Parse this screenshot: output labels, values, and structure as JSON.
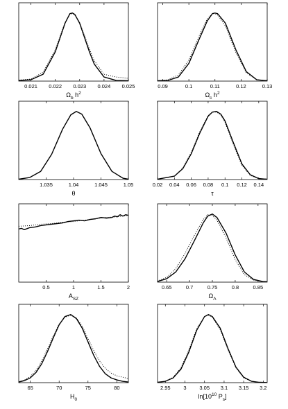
{
  "chart_data": [
    {
      "type": "line",
      "xlabel": {
        "parts": [
          [
            "Ω",
            "n"
          ],
          [
            "b",
            "sub"
          ],
          [
            " h",
            "n"
          ],
          [
            "2",
            "sup"
          ]
        ]
      },
      "xlim": [
        0.0205,
        0.025
      ],
      "ylim": [
        0,
        1.15
      ],
      "xticks": [
        0.021,
        0.022,
        0.023,
        0.024,
        0.025
      ],
      "xticklabels": [
        "0.021",
        "0.022",
        "0.023",
        "0.024",
        "0.025"
      ],
      "series": [
        {
          "style": "solid",
          "x": [
            0.0205,
            0.021,
            0.0215,
            0.022,
            0.0222,
            0.0224,
            0.0226,
            0.0227,
            0.0228,
            0.023,
            0.0232,
            0.0234,
            0.0236,
            0.024,
            0.0245,
            0.025
          ],
          "y": [
            0.01,
            0.02,
            0.1,
            0.43,
            0.64,
            0.85,
            0.99,
            1.0,
            0.98,
            0.85,
            0.64,
            0.43,
            0.25,
            0.06,
            0.01,
            0.005
          ]
        },
        {
          "style": "dotted",
          "x": [
            0.0205,
            0.021,
            0.0215,
            0.022,
            0.0222,
            0.0224,
            0.0226,
            0.0227,
            0.0228,
            0.023,
            0.0232,
            0.0234,
            0.0236,
            0.024,
            0.0245,
            0.025
          ],
          "y": [
            0.015,
            0.03,
            0.13,
            0.46,
            0.66,
            0.86,
            0.98,
            0.99,
            0.97,
            0.86,
            0.67,
            0.47,
            0.3,
            0.1,
            0.06,
            0.04
          ]
        }
      ]
    },
    {
      "type": "line",
      "xlabel": {
        "parts": [
          [
            "Ω",
            "n"
          ],
          [
            "c",
            "sub"
          ],
          [
            " h",
            "n"
          ],
          [
            "2",
            "sup"
          ]
        ]
      },
      "xlim": [
        0.088,
        0.13
      ],
      "ylim": [
        0,
        1.15
      ],
      "xticks": [
        0.09,
        0.1,
        0.11,
        0.12,
        0.13
      ],
      "xticklabels": [
        "0.09",
        "0.1",
        "0.11",
        "0.12",
        "0.13"
      ],
      "series": [
        {
          "style": "solid",
          "x": [
            0.088,
            0.092,
            0.096,
            0.1,
            0.104,
            0.107,
            0.109,
            0.11,
            0.111,
            0.114,
            0.118,
            0.122,
            0.126,
            0.13
          ],
          "y": [
            0.005,
            0.01,
            0.06,
            0.26,
            0.62,
            0.88,
            0.99,
            1.0,
            0.99,
            0.85,
            0.46,
            0.14,
            0.02,
            0.005
          ]
        },
        {
          "style": "dotted",
          "x": [
            0.088,
            0.092,
            0.096,
            0.1,
            0.104,
            0.107,
            0.109,
            0.11,
            0.111,
            0.114,
            0.118,
            0.122,
            0.126,
            0.13
          ],
          "y": [
            0.005,
            0.02,
            0.09,
            0.31,
            0.67,
            0.91,
            0.99,
            0.99,
            0.97,
            0.81,
            0.42,
            0.12,
            0.02,
            0.005
          ]
        }
      ]
    },
    {
      "type": "line",
      "xlabel": {
        "parts": [
          [
            "θ",
            "n"
          ]
        ]
      },
      "xlim": [
        1.03,
        1.05
      ],
      "ylim": [
        0,
        1.15
      ],
      "xticks": [
        1.035,
        1.04,
        1.045,
        1.05
      ],
      "xticklabels": [
        "1.035",
        "1.04",
        "1.045",
        "1.05"
      ],
      "series": [
        {
          "style": "solid",
          "x": [
            1.03,
            1.032,
            1.034,
            1.036,
            1.038,
            1.0395,
            1.0405,
            1.0415,
            1.043,
            1.045,
            1.047,
            1.049,
            1.05
          ],
          "y": [
            0.005,
            0.03,
            0.12,
            0.37,
            0.74,
            0.95,
            1.0,
            0.96,
            0.76,
            0.38,
            0.12,
            0.02,
            0.005
          ]
        },
        {
          "style": "dotted",
          "x": [
            1.03,
            1.032,
            1.034,
            1.036,
            1.038,
            1.0395,
            1.0405,
            1.0415,
            1.043,
            1.045,
            1.047,
            1.049,
            1.05
          ],
          "y": [
            0.005,
            0.03,
            0.12,
            0.37,
            0.74,
            0.95,
            1.0,
            0.96,
            0.76,
            0.38,
            0.12,
            0.02,
            0.005
          ]
        }
      ]
    },
    {
      "type": "line",
      "xlabel": {
        "parts": [
          [
            "τ",
            "n"
          ]
        ]
      },
      "xlim": [
        0.02,
        0.15
      ],
      "ylim": [
        0,
        1.15
      ],
      "xticks": [
        0.02,
        0.04,
        0.06,
        0.08,
        0.1,
        0.12,
        0.14
      ],
      "xticklabels": [
        "0.02",
        "0.04",
        "0.06",
        "0.08",
        "0.1",
        "0.12",
        "0.14"
      ],
      "series": [
        {
          "style": "solid",
          "x": [
            0.02,
            0.04,
            0.05,
            0.06,
            0.07,
            0.08,
            0.085,
            0.09,
            0.095,
            0.1,
            0.11,
            0.12,
            0.13,
            0.14,
            0.15
          ],
          "y": [
            0.005,
            0.05,
            0.16,
            0.38,
            0.68,
            0.93,
            0.99,
            1.0,
            0.96,
            0.86,
            0.54,
            0.23,
            0.07,
            0.015,
            0.005
          ]
        },
        {
          "style": "dotted",
          "x": [
            0.02,
            0.04,
            0.05,
            0.06,
            0.07,
            0.08,
            0.085,
            0.09,
            0.095,
            0.1,
            0.11,
            0.12,
            0.13,
            0.14,
            0.15
          ],
          "y": [
            0.005,
            0.05,
            0.17,
            0.4,
            0.7,
            0.94,
            0.99,
            0.99,
            0.95,
            0.84,
            0.51,
            0.21,
            0.06,
            0.01,
            0.005
          ]
        }
      ]
    },
    {
      "type": "line",
      "xlabel": {
        "parts": [
          [
            "A",
            "n"
          ],
          [
            "SZ",
            "sub"
          ]
        ]
      },
      "xlim": [
        0,
        2
      ],
      "ylim": [
        0,
        1.15
      ],
      "xticks": [
        0.5,
        1,
        1.5,
        2
      ],
      "xticklabels": [
        "0.5",
        "1",
        "1.5",
        "2"
      ],
      "series": [
        {
          "style": "solid",
          "x": [
            0,
            0.05,
            0.1,
            0.2,
            0.3,
            0.4,
            0.5,
            0.6,
            0.7,
            0.8,
            0.9,
            1.0,
            1.1,
            1.2,
            1.3,
            1.4,
            1.5,
            1.6,
            1.7,
            1.75,
            1.8,
            1.85,
            1.9,
            1.95,
            2.0
          ],
          "y": [
            0.78,
            0.79,
            0.77,
            0.8,
            0.81,
            0.83,
            0.84,
            0.85,
            0.86,
            0.87,
            0.89,
            0.9,
            0.91,
            0.9,
            0.92,
            0.93,
            0.95,
            0.94,
            0.95,
            0.97,
            0.96,
            0.99,
            0.97,
            0.99,
            0.98
          ]
        },
        {
          "style": "dotted",
          "x": [
            0,
            0.2,
            0.4,
            0.6,
            0.8,
            1.0,
            1.2,
            1.4,
            1.6,
            1.8,
            2.0
          ],
          "y": [
            0.82,
            0.83,
            0.85,
            0.86,
            0.88,
            0.89,
            0.91,
            0.93,
            0.95,
            0.96,
            0.98
          ]
        }
      ]
    },
    {
      "type": "line",
      "xlabel": {
        "parts": [
          [
            "Ω",
            "n"
          ],
          [
            "Λ",
            "sub"
          ]
        ]
      },
      "xlim": [
        0.63,
        0.87
      ],
      "ylim": [
        0,
        1.15
      ],
      "xticks": [
        0.65,
        0.7,
        0.75,
        0.8,
        0.85
      ],
      "xticklabels": [
        "0.65",
        "0.7",
        "0.75",
        "0.8",
        "0.85"
      ],
      "series": [
        {
          "style": "solid",
          "x": [
            0.63,
            0.65,
            0.67,
            0.69,
            0.71,
            0.73,
            0.74,
            0.75,
            0.76,
            0.78,
            0.8,
            0.82,
            0.84,
            0.86,
            0.87
          ],
          "y": [
            0.01,
            0.05,
            0.15,
            0.34,
            0.6,
            0.87,
            0.97,
            1.0,
            0.95,
            0.72,
            0.4,
            0.15,
            0.04,
            0.01,
            0.005
          ]
        },
        {
          "style": "dotted",
          "x": [
            0.63,
            0.65,
            0.67,
            0.69,
            0.71,
            0.73,
            0.74,
            0.75,
            0.76,
            0.78,
            0.8,
            0.82,
            0.84,
            0.86,
            0.87
          ],
          "y": [
            0.015,
            0.07,
            0.2,
            0.42,
            0.68,
            0.92,
            0.99,
            0.98,
            0.91,
            0.65,
            0.33,
            0.11,
            0.03,
            0.005,
            0.002
          ]
        }
      ]
    },
    {
      "type": "line",
      "xlabel": {
        "parts": [
          [
            "H",
            "n"
          ],
          [
            "0",
            "sub"
          ]
        ]
      },
      "xlim": [
        63,
        82
      ],
      "ylim": [
        0,
        1.15
      ],
      "xticks": [
        65,
        70,
        75,
        80
      ],
      "xticklabels": [
        "65",
        "70",
        "75",
        "80"
      ],
      "series": [
        {
          "style": "solid",
          "x": [
            63,
            64,
            65,
            66,
            67,
            68,
            69,
            70,
            71,
            72,
            73,
            74,
            75,
            76,
            77,
            78,
            79,
            80,
            81,
            82
          ],
          "y": [
            0.01,
            0.03,
            0.07,
            0.15,
            0.28,
            0.46,
            0.66,
            0.85,
            0.97,
            1.0,
            0.94,
            0.8,
            0.6,
            0.4,
            0.24,
            0.13,
            0.07,
            0.04,
            0.02,
            0.01
          ]
        },
        {
          "style": "dotted",
          "x": [
            63,
            64,
            65,
            66,
            67,
            68,
            69,
            70,
            71,
            72,
            73,
            74,
            75,
            76,
            77,
            78,
            79,
            80,
            81,
            82
          ],
          "y": [
            0.015,
            0.04,
            0.09,
            0.18,
            0.32,
            0.5,
            0.69,
            0.86,
            0.96,
            0.99,
            0.95,
            0.83,
            0.65,
            0.47,
            0.32,
            0.21,
            0.14,
            0.1,
            0.08,
            0.06
          ]
        }
      ]
    },
    {
      "type": "line",
      "xlabel": {
        "parts": [
          [
            "ln[10",
            "n"
          ],
          [
            "10",
            "sup"
          ],
          [
            " P",
            "n"
          ],
          [
            "s",
            "sub"
          ],
          [
            "]",
            "n"
          ]
        ]
      },
      "xlim": [
        2.93,
        3.21
      ],
      "ylim": [
        0,
        1.15
      ],
      "xticks": [
        2.95,
        3.0,
        3.05,
        3.1,
        3.15,
        3.2
      ],
      "xticklabels": [
        "2.95",
        "3",
        "3.05",
        "3.1",
        "3.15",
        "3.2"
      ],
      "series": [
        {
          "style": "solid",
          "x": [
            2.93,
            2.95,
            2.97,
            2.99,
            3.01,
            3.03,
            3.05,
            3.06,
            3.07,
            3.09,
            3.11,
            3.13,
            3.15,
            3.17,
            3.19,
            3.21
          ],
          "y": [
            0.005,
            0.02,
            0.07,
            0.2,
            0.45,
            0.77,
            0.97,
            1.0,
            0.97,
            0.8,
            0.5,
            0.23,
            0.08,
            0.02,
            0.005,
            0.002
          ]
        },
        {
          "style": "dotted",
          "x": [
            2.93,
            2.95,
            2.97,
            2.99,
            3.01,
            3.03,
            3.05,
            3.06,
            3.07,
            3.09,
            3.11,
            3.13,
            3.15,
            3.17,
            3.19,
            3.21
          ],
          "y": [
            0.005,
            0.02,
            0.08,
            0.22,
            0.48,
            0.79,
            0.97,
            0.99,
            0.96,
            0.78,
            0.48,
            0.22,
            0.07,
            0.02,
            0.005,
            0.002
          ]
        }
      ]
    }
  ]
}
